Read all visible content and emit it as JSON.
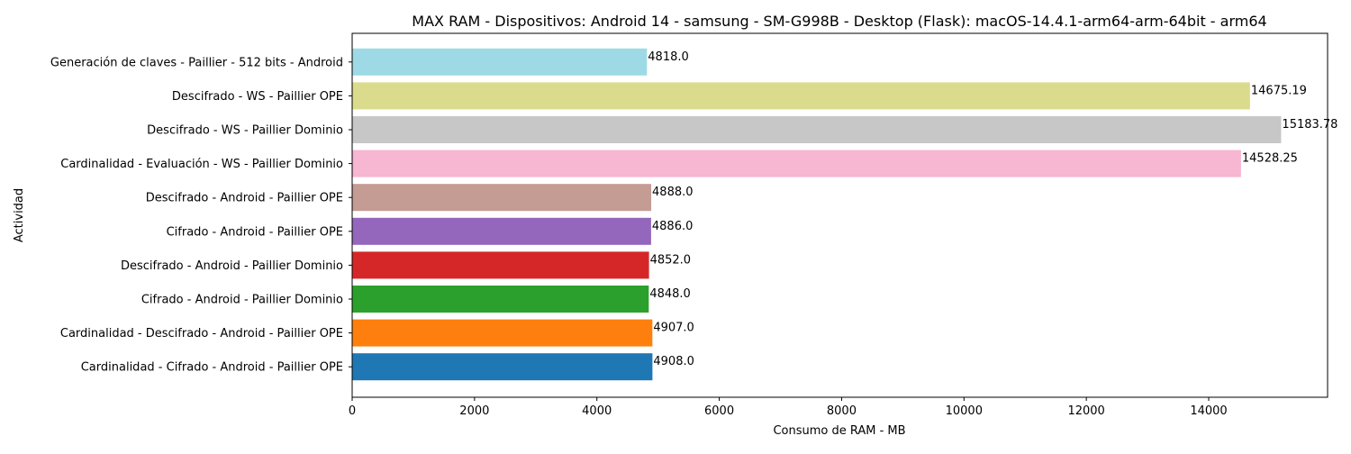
{
  "chart_data": {
    "type": "bar",
    "orientation": "horizontal",
    "title": "MAX RAM - Dispositivos: Android 14 - samsung - SM-G998B - Desktop (Flask): macOS-14.4.1-arm64-arm-64bit - arm64",
    "xlabel": "Consumo de RAM - MB",
    "ylabel": "Actividad",
    "xlim": [
      0,
      15942.97
    ],
    "xticks": [
      0,
      2000,
      4000,
      6000,
      8000,
      10000,
      12000,
      14000
    ],
    "grid": false,
    "categories": [
      "Cardinalidad - Cifrado - Android - Paillier OPE",
      "Cardinalidad - Descifrado - Android - Paillier OPE",
      "Cifrado - Android - Paillier Dominio",
      "Descifrado - Android - Paillier Dominio",
      "Cifrado - Android - Paillier OPE",
      "Descifrado - Android - Paillier OPE",
      "Cardinalidad - Evaluación - WS - Paillier Dominio",
      "Descifrado - WS - Paillier Dominio",
      "Descifrado - WS - Paillier OPE",
      "Generación de claves - Paillier - 512 bits - Android"
    ],
    "values": [
      4908.0,
      4907.0,
      4848.0,
      4852.0,
      4886.0,
      4888.0,
      14528.25,
      15183.78,
      14675.19,
      4818.0
    ],
    "value_labels": [
      "4908.0",
      "4907.0",
      "4848.0",
      "4852.0",
      "4886.0",
      "4888.0",
      "14528.25",
      "15183.78",
      "14675.19",
      "4818.0"
    ],
    "colors": [
      "#1f77b4",
      "#ff7f0e",
      "#2ca02c",
      "#d62728",
      "#9467bd",
      "#c49c94",
      "#f7b6d2",
      "#c7c7c7",
      "#dbdb8d",
      "#9edae5"
    ]
  }
}
